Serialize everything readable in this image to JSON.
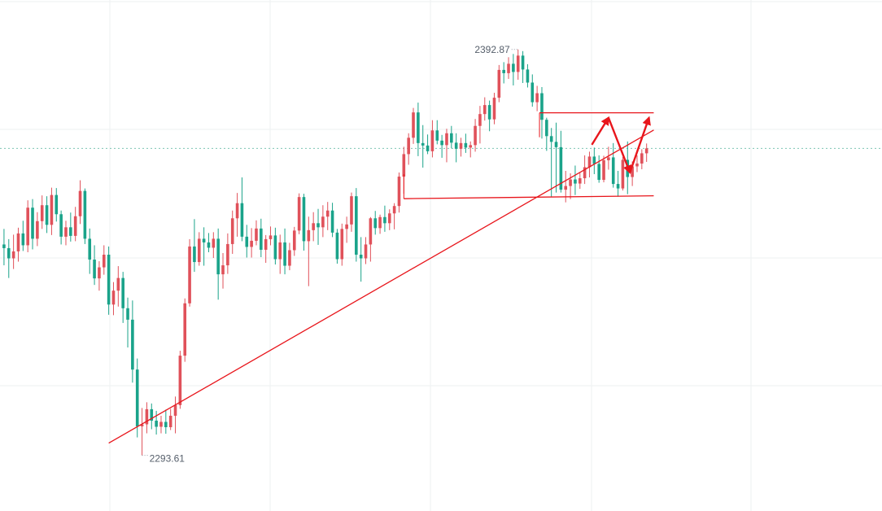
{
  "chart_data": {
    "type": "candlestick",
    "colors": {
      "up": "#e0515a",
      "down": "#1aa38a",
      "annotation": "#e8151b",
      "grid": "#eef0f2",
      "current_price_line": "#7dc5b3",
      "label_text": "#555e6a"
    },
    "high_label": "2392.87",
    "low_label": "2293.61",
    "price_range": [
      2280,
      2405
    ],
    "grid": true,
    "candles": [
      [
        2345.2,
        2349.0,
        2340.1,
        2344.3
      ],
      [
        2344.3,
        2346.5,
        2337.0,
        2341.8
      ],
      [
        2341.8,
        2347.6,
        2339.2,
        2343.5
      ],
      [
        2343.5,
        2349.3,
        2341.0,
        2347.9
      ],
      [
        2347.9,
        2351.0,
        2343.6,
        2345.0
      ],
      [
        2345.0,
        2356.0,
        2343.3,
        2354.2
      ],
      [
        2354.2,
        2356.3,
        2344.0,
        2346.6
      ],
      [
        2346.6,
        2353.1,
        2344.8,
        2350.9
      ],
      [
        2350.9,
        2357.2,
        2349.0,
        2354.8
      ],
      [
        2354.8,
        2357.0,
        2348.0,
        2350.0
      ],
      [
        2350.0,
        2359.1,
        2347.5,
        2357.3
      ],
      [
        2357.3,
        2359.0,
        2350.8,
        2352.6
      ],
      [
        2352.6,
        2353.5,
        2345.2,
        2347.1
      ],
      [
        2347.1,
        2351.0,
        2345.0,
        2349.4
      ],
      [
        2349.4,
        2353.0,
        2345.9,
        2347.3
      ],
      [
        2347.3,
        2354.4,
        2346.0,
        2352.1
      ],
      [
        2352.1,
        2360.9,
        2350.2,
        2358.3
      ],
      [
        2358.3,
        2358.9,
        2345.3,
        2346.6
      ],
      [
        2346.6,
        2349.1,
        2338.0,
        2341.5
      ],
      [
        2341.5,
        2345.0,
        2335.3,
        2336.9
      ],
      [
        2336.9,
        2341.1,
        2333.9,
        2339.6
      ],
      [
        2339.6,
        2345.0,
        2337.8,
        2342.7
      ],
      [
        2342.7,
        2344.7,
        2328.0,
        2330.5
      ],
      [
        2330.5,
        2336.0,
        2327.9,
        2333.9
      ],
      [
        2333.9,
        2339.9,
        2330.0,
        2337.0
      ],
      [
        2337.0,
        2338.5,
        2326.0,
        2329.6
      ],
      [
        2329.6,
        2332.2,
        2320.0,
        2326.8
      ],
      [
        2326.8,
        2331.5,
        2311.4,
        2314.6
      ],
      [
        2314.6,
        2317.3,
        2298.0,
        2300.7
      ],
      [
        2300.7,
        2305.2,
        2293.6,
        2301.2
      ],
      [
        2301.2,
        2306.6,
        2299.0,
        2304.9
      ],
      [
        2304.9,
        2306.3,
        2300.0,
        2302.1
      ],
      [
        2302.1,
        2304.5,
        2298.7,
        2300.6
      ],
      [
        2300.6,
        2303.3,
        2299.0,
        2301.8
      ],
      [
        2301.8,
        2304.8,
        2298.9,
        2300.5
      ],
      [
        2300.5,
        2305.0,
        2299.8,
        2303.3
      ],
      [
        2303.3,
        2308.0,
        2299.0,
        2305.9
      ],
      [
        2305.9,
        2319.2,
        2305.0,
        2318.0
      ],
      [
        2318.0,
        2332.0,
        2316.5,
        2330.8
      ],
      [
        2330.8,
        2346.5,
        2330.0,
        2344.7
      ],
      [
        2344.7,
        2351.4,
        2338.5,
        2340.9
      ],
      [
        2340.9,
        2348.2,
        2340.0,
        2346.6
      ],
      [
        2346.6,
        2349.4,
        2340.0,
        2345.7
      ],
      [
        2345.7,
        2348.0,
        2343.3,
        2344.4
      ],
      [
        2344.4,
        2348.2,
        2341.9,
        2346.6
      ],
      [
        2346.6,
        2349.1,
        2331.7,
        2337.9
      ],
      [
        2337.9,
        2343.1,
        2334.4,
        2340.1
      ],
      [
        2340.1,
        2347.9,
        2338.0,
        2345.3
      ],
      [
        2345.3,
        2353.5,
        2342.9,
        2351.6
      ],
      [
        2351.6,
        2357.8,
        2347.1,
        2355.3
      ],
      [
        2355.3,
        2361.6,
        2346.0,
        2347.1
      ],
      [
        2347.1,
        2350.0,
        2342.0,
        2344.6
      ],
      [
        2344.6,
        2349.2,
        2342.0,
        2346.1
      ],
      [
        2346.1,
        2351.1,
        2345.0,
        2349.1
      ],
      [
        2349.1,
        2351.5,
        2342.1,
        2343.9
      ],
      [
        2343.9,
        2347.5,
        2340.7,
        2346.5
      ],
      [
        2346.5,
        2349.6,
        2345.0,
        2347.4
      ],
      [
        2347.4,
        2349.3,
        2340.3,
        2341.6
      ],
      [
        2341.6,
        2347.6,
        2338.0,
        2345.7
      ],
      [
        2345.7,
        2349.1,
        2337.9,
        2340.0
      ],
      [
        2340.0,
        2345.6,
        2338.9,
        2343.8
      ],
      [
        2343.8,
        2349.5,
        2342.4,
        2348.6
      ],
      [
        2348.6,
        2357.7,
        2347.7,
        2356.8
      ],
      [
        2356.8,
        2357.6,
        2343.7,
        2346.0
      ],
      [
        2346.0,
        2352.0,
        2335.0,
        2348.7
      ],
      [
        2348.7,
        2353.1,
        2346.0,
        2350.4
      ],
      [
        2350.4,
        2353.9,
        2345.1,
        2349.4
      ],
      [
        2349.4,
        2354.8,
        2347.0,
        2352.0
      ],
      [
        2352.0,
        2355.6,
        2348.7,
        2353.5
      ],
      [
        2353.5,
        2355.4,
        2347.0,
        2348.1
      ],
      [
        2348.1,
        2349.0,
        2340.5,
        2341.6
      ],
      [
        2341.6,
        2350.3,
        2340.0,
        2349.0
      ],
      [
        2349.0,
        2352.0,
        2345.6,
        2350.1
      ],
      [
        2350.1,
        2357.9,
        2348.3,
        2357.0
      ],
      [
        2357.0,
        2359.0,
        2341.0,
        2342.7
      ],
      [
        2342.7,
        2347.0,
        2336.1,
        2341.8
      ],
      [
        2341.8,
        2347.0,
        2340.4,
        2345.2
      ],
      [
        2345.2,
        2351.9,
        2341.0,
        2351.6
      ],
      [
        2351.6,
        2353.4,
        2347.6,
        2349.2
      ],
      [
        2349.2,
        2352.5,
        2347.8,
        2351.9
      ],
      [
        2351.9,
        2354.7,
        2348.3,
        2350.4
      ],
      [
        2350.4,
        2353.8,
        2348.7,
        2352.8
      ],
      [
        2352.8,
        2355.3,
        2348.9,
        2354.6
      ],
      [
        2354.6,
        2362.8,
        2353.0,
        2361.8
      ],
      [
        2361.8,
        2369.1,
        2357.6,
        2367.3
      ],
      [
        2367.3,
        2372.4,
        2364.7,
        2371.3
      ],
      [
        2371.3,
        2378.6,
        2369.8,
        2377.5
      ],
      [
        2377.5,
        2379.9,
        2366.8,
        2370.0
      ],
      [
        2370.0,
        2374.4,
        2364.0,
        2369.4
      ],
      [
        2369.4,
        2372.1,
        2367.3,
        2368.0
      ],
      [
        2368.0,
        2375.6,
        2366.5,
        2373.1
      ],
      [
        2373.1,
        2375.6,
        2369.7,
        2370.6
      ],
      [
        2370.6,
        2372.0,
        2366.4,
        2369.5
      ],
      [
        2369.5,
        2373.5,
        2365.3,
        2372.4
      ],
      [
        2372.4,
        2374.2,
        2368.7,
        2370.1
      ],
      [
        2370.1,
        2372.4,
        2365.3,
        2368.6
      ],
      [
        2368.6,
        2371.3,
        2366.7,
        2370.0
      ],
      [
        2370.0,
        2372.3,
        2367.6,
        2368.9
      ],
      [
        2368.9,
        2370.4,
        2366.5,
        2369.5
      ],
      [
        2369.5,
        2375.9,
        2367.9,
        2374.2
      ],
      [
        2374.2,
        2379.1,
        2369.9,
        2377.1
      ],
      [
        2377.1,
        2381.2,
        2375.5,
        2379.3
      ],
      [
        2379.3,
        2380.4,
        2372.9,
        2375.8
      ],
      [
        2375.8,
        2382.3,
        2374.6,
        2381.1
      ],
      [
        2381.1,
        2389.1,
        2380.0,
        2387.9
      ],
      [
        2387.9,
        2389.8,
        2384.6,
        2387.1
      ],
      [
        2387.1,
        2391.0,
        2385.7,
        2389.4
      ],
      [
        2389.4,
        2391.8,
        2384.1,
        2387.4
      ],
      [
        2387.4,
        2392.9,
        2385.5,
        2391.4
      ],
      [
        2391.4,
        2392.5,
        2384.7,
        2388.0
      ],
      [
        2388.0,
        2389.3,
        2383.6,
        2384.8
      ],
      [
        2384.8,
        2386.8,
        2378.9,
        2380.0
      ],
      [
        2380.0,
        2384.0,
        2377.8,
        2382.2
      ],
      [
        2382.2,
        2383.7,
        2371.1,
        2375.7
      ],
      [
        2375.7,
        2376.2,
        2368.1,
        2371.7
      ],
      [
        2371.7,
        2373.7,
        2356.9,
        2370.3
      ],
      [
        2370.3,
        2375.0,
        2357.9,
        2369.0
      ],
      [
        2369.0,
        2373.0,
        2357.9,
        2358.6
      ],
      [
        2358.6,
        2363.2,
        2355.5,
        2359.5
      ],
      [
        2359.5,
        2362.6,
        2356.3,
        2361.1
      ],
      [
        2361.1,
        2364.5,
        2357.3,
        2360.1
      ],
      [
        2360.1,
        2362.7,
        2358.8,
        2361.4
      ],
      [
        2361.4,
        2367.0,
        2360.0,
        2364.1
      ],
      [
        2364.1,
        2367.9,
        2361.6,
        2366.7
      ],
      [
        2366.7,
        2368.9,
        2362.4,
        2364.9
      ],
      [
        2364.9,
        2367.0,
        2360.3,
        2361.0
      ],
      [
        2361.0,
        2366.9,
        2360.4,
        2365.8
      ],
      [
        2365.8,
        2369.1,
        2363.5,
        2366.5
      ],
      [
        2366.5,
        2370.0,
        2359.1,
        2360.0
      ],
      [
        2360.0,
        2363.2,
        2356.9,
        2358.9
      ],
      [
        2358.9,
        2366.6,
        2358.4,
        2365.9
      ],
      [
        2365.9,
        2370.4,
        2357.5,
        2361.7
      ],
      [
        2361.7,
        2365.5,
        2359.5,
        2364.3
      ],
      [
        2364.3,
        2367.0,
        2362.9,
        2365.0
      ],
      [
        2365.0,
        2368.5,
        2363.6,
        2367.5
      ],
      [
        2367.5,
        2369.9,
        2365.4,
        2368.7
      ]
    ],
    "annotations": {
      "trendline": {
        "from": [
          22,
          2296.6
        ],
        "to": [
          136.5,
          2373.2
        ]
      },
      "resistance": {
        "from": [
          112.5,
          2377.4
        ],
        "to": [
          136.5,
          2377.4
        ],
        "tick_at": 112.5
      },
      "support": {
        "from": [
          84,
          2356.4
        ],
        "to": [
          136.5,
          2357.1
        ],
        "tick_at": 84
      },
      "projection_arrows": [
        {
          "from": [
            123.5,
            2369.6
          ],
          "to": [
            127.0,
            2376.2
          ]
        },
        {
          "from": [
            127.0,
            2376.2
          ],
          "to": [
            131.5,
            2362.8
          ]
        },
        {
          "from": [
            131.5,
            2362.8
          ],
          "to": [
            135.5,
            2376.2
          ]
        }
      ]
    }
  }
}
